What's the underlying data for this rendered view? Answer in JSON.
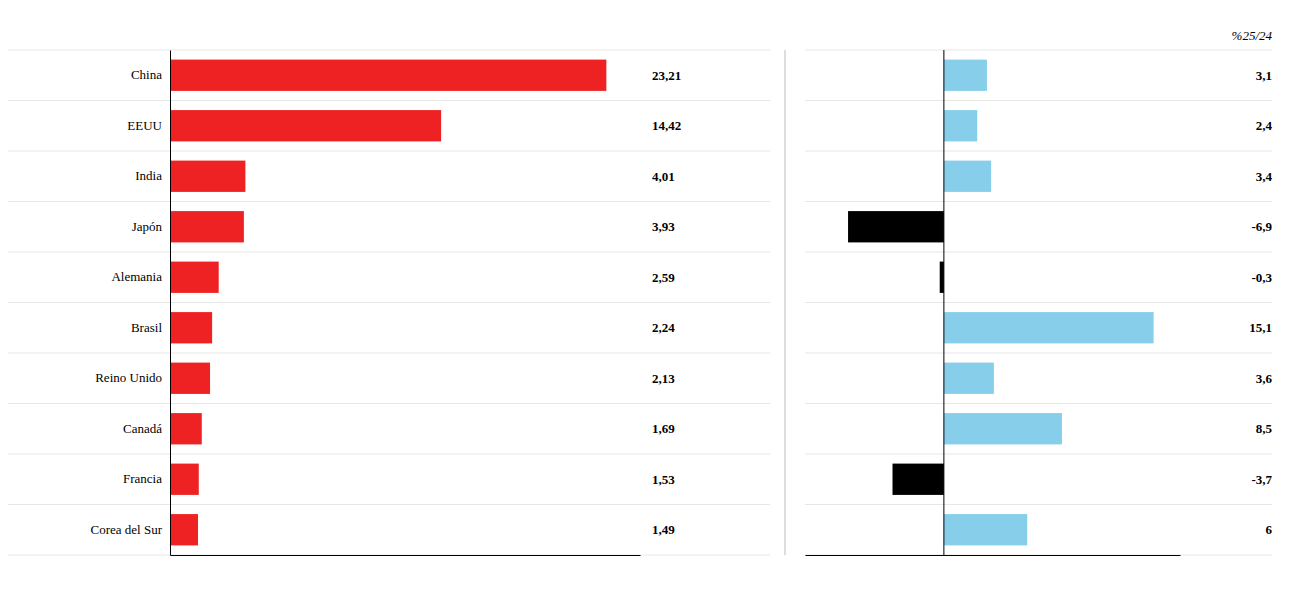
{
  "chart_data": [
    {
      "type": "bar",
      "orientation": "horizontal",
      "categories": [
        "China",
        "EEUU",
        "India",
        "Japón",
        "Alemania",
        "Brasil",
        "Reino Unido",
        "Canadá",
        "Francia",
        "Corea del Sur"
      ],
      "values": [
        23.21,
        14.42,
        4.01,
        3.93,
        2.59,
        2.24,
        2.13,
        1.69,
        1.53,
        1.49
      ],
      "value_labels": [
        "23,21",
        "14,42",
        "4,01",
        "3,93",
        "2,59",
        "2,24",
        "2,13",
        "1,69",
        "1,53",
        "1,49"
      ],
      "data_labels": true,
      "color": "#EE2222",
      "xlim": [
        0,
        25
      ],
      "tick_labels": "y"
    },
    {
      "type": "bar",
      "orientation": "horizontal",
      "title": "%25/24",
      "categories": [
        "China",
        "EEUU",
        "India",
        "Japón",
        "Alemania",
        "Brasil",
        "Reino Unido",
        "Canadá",
        "Francia",
        "Corea del Sur"
      ],
      "values": [
        3.1,
        2.4,
        3.4,
        -6.9,
        -0.3,
        15.1,
        3.6,
        8.5,
        -3.7,
        6
      ],
      "value_labels": [
        "3,1",
        "2,4",
        "3,4",
        "-6,9",
        "-0,3",
        "15,1",
        "3,6",
        "8,5",
        "-3,7",
        "6"
      ],
      "data_labels": true,
      "colors": [
        "#87CEEB",
        "#87CEEB",
        "#87CEEB",
        "#000000",
        "#000000",
        "#87CEEB",
        "#87CEEB",
        "#87CEEB",
        "#000000",
        "#87CEEB"
      ],
      "xlim": [
        -10,
        17
      ],
      "xticks": [
        0
      ],
      "tick_labels": false
    }
  ]
}
